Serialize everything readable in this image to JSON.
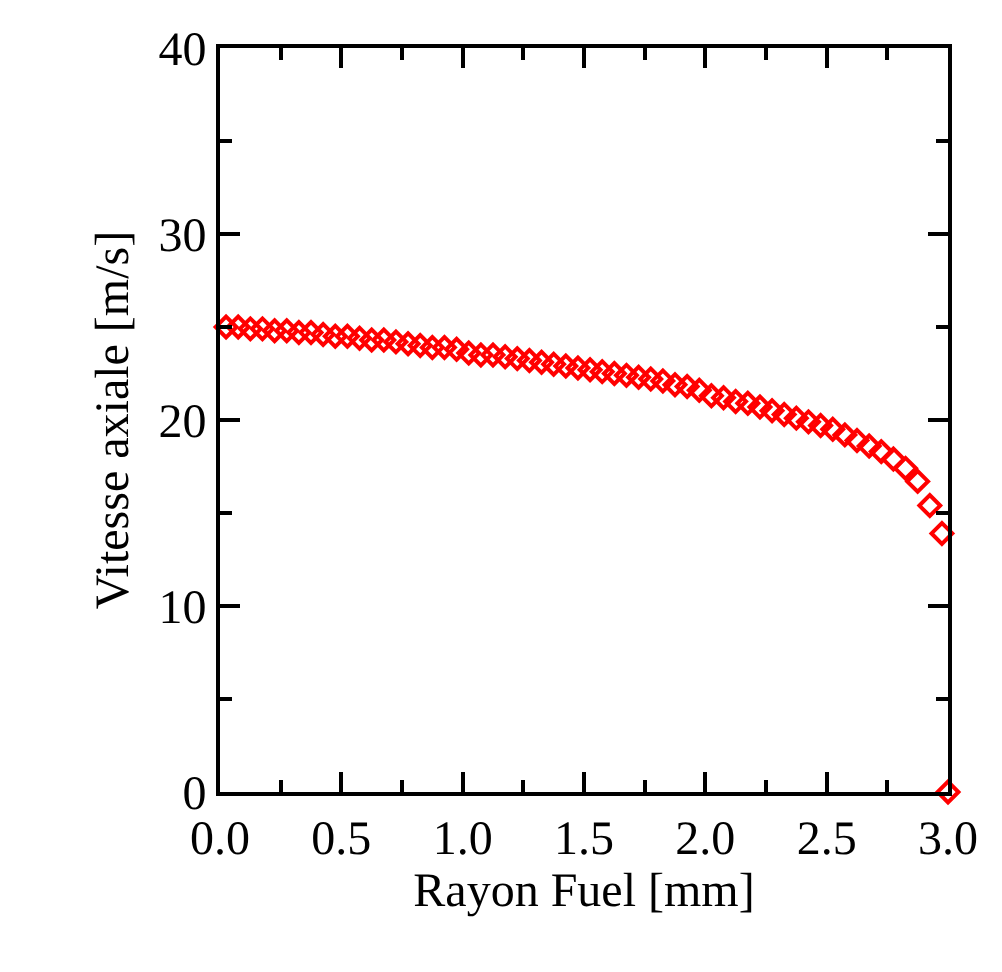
{
  "chart_data": {
    "type": "scatter",
    "xlabel": "Rayon Fuel [mm]",
    "ylabel": "Vitesse axiale [m/s]",
    "x": [
      0.025,
      0.075,
      0.125,
      0.175,
      0.225,
      0.275,
      0.325,
      0.375,
      0.425,
      0.475,
      0.525,
      0.575,
      0.625,
      0.675,
      0.725,
      0.775,
      0.825,
      0.875,
      0.925,
      0.975,
      1.025,
      1.075,
      1.125,
      1.175,
      1.225,
      1.275,
      1.325,
      1.375,
      1.425,
      1.475,
      1.525,
      1.575,
      1.625,
      1.675,
      1.725,
      1.775,
      1.825,
      1.875,
      1.925,
      1.975,
      2.025,
      2.075,
      2.125,
      2.175,
      2.225,
      2.275,
      2.325,
      2.375,
      2.425,
      2.475,
      2.525,
      2.575,
      2.625,
      2.675,
      2.725,
      2.775,
      2.825,
      2.875,
      2.925,
      2.975,
      3.0
    ],
    "series": [
      {
        "color": "#ff0000",
        "values": [
          25.0,
          25.0,
          24.9,
          24.9,
          24.8,
          24.8,
          24.7,
          24.7,
          24.6,
          24.5,
          24.5,
          24.4,
          24.3,
          24.3,
          24.2,
          24.1,
          24.0,
          23.9,
          23.9,
          23.8,
          23.6,
          23.5,
          23.5,
          23.4,
          23.3,
          23.2,
          23.1,
          23.0,
          22.9,
          22.8,
          22.7,
          22.6,
          22.5,
          22.4,
          22.3,
          22.2,
          22.1,
          21.9,
          21.8,
          21.6,
          21.3,
          21.2,
          21.0,
          20.9,
          20.7,
          20.5,
          20.3,
          20.1,
          19.9,
          19.7,
          19.5,
          19.2,
          18.9,
          18.6,
          18.3,
          17.9,
          17.4,
          16.7,
          15.4,
          13.9,
          0
        ]
      }
    ],
    "xlim": [
      0,
      3
    ],
    "xticks": [
      {
        "value": 0,
        "label": "0.0"
      },
      {
        "value": 0.5,
        "label": "0.5"
      },
      {
        "value": 1,
        "label": "1.0"
      },
      {
        "value": 1.5,
        "label": "1.5"
      },
      {
        "value": 2,
        "label": "2.0"
      },
      {
        "value": 2.5,
        "label": "2.5"
      },
      {
        "value": 3,
        "label": "3.0"
      }
    ],
    "ylim": [
      0,
      40
    ],
    "yticks": [
      0,
      10,
      20,
      30,
      40
    ],
    "marker": "diamond"
  }
}
